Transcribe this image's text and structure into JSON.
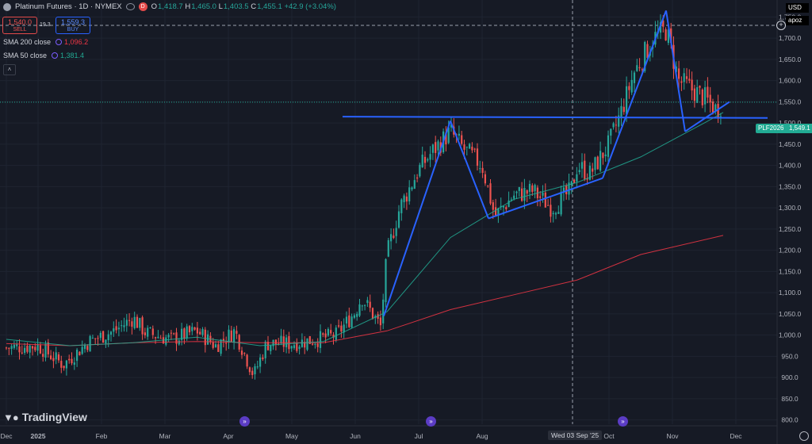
{
  "header": {
    "title": "Platinum Futures · 1D · NYMEX",
    "delayed_badge": "D",
    "ohlc": [
      {
        "k": "O",
        "v": "1,418.7"
      },
      {
        "k": "H",
        "v": "1,465.0"
      },
      {
        "k": "L",
        "v": "1,403.5"
      },
      {
        "k": "C",
        "v": "1,455.1"
      }
    ],
    "change": "+42.9 (+3.04%)"
  },
  "trade": {
    "sell_price": "1,540.0",
    "sell_label": "SELL",
    "spread": "19.3",
    "buy_price": "1,559.3",
    "buy_label": "BUY"
  },
  "indicators": [
    {
      "label": "SMA 200 close",
      "value": "1,096.2",
      "color": "#f23645"
    },
    {
      "label": "SMA 50 close",
      "value": "1,381.4",
      "color": "#22ab94"
    }
  ],
  "collapse_icon": "chevron-up-icon",
  "currency": "USD",
  "scale_mode": "apoz",
  "symbol_tag": "PLF2026",
  "last_price": "1,549.1",
  "crosshair_date": "Wed 03 Sep '25",
  "brand": "TradingView",
  "chart_data": {
    "type": "candlestick",
    "ylim": [
      790,
      1790
    ],
    "y_ticks": [
      "1,750.0",
      "1,700.0",
      "1,650.0",
      "1,600.0",
      "1,550.0",
      "1,500.0",
      "1,450.0",
      "1,400.0",
      "1,350.0",
      "1,300.0",
      "1,250.0",
      "1,200.0",
      "1,150.0",
      "1,100.0",
      "1,050.0",
      "1,000.0",
      "950.0",
      "900.0",
      "850.0",
      "800.0"
    ],
    "y_tick_values": [
      1750,
      1700,
      1650,
      1600,
      1550,
      1500,
      1450,
      1400,
      1350,
      1300,
      1250,
      1200,
      1150,
      1100,
      1050,
      1000,
      950,
      900,
      850,
      800
    ],
    "x_ticks": [
      {
        "label": "Dec",
        "t": 0
      },
      {
        "label": "2025",
        "t": 0.5
      },
      {
        "label": "Feb",
        "t": 1.5
      },
      {
        "label": "Mar",
        "t": 2.5
      },
      {
        "label": "Apr",
        "t": 3.5
      },
      {
        "label": "May",
        "t": 4.5
      },
      {
        "label": "Jun",
        "t": 5.5
      },
      {
        "label": "Jul",
        "t": 6.5
      },
      {
        "label": "Aug",
        "t": 7.5
      },
      {
        "label": "Oct",
        "t": 9.5
      },
      {
        "label": "Nov",
        "t": 10.5
      },
      {
        "label": "Dec",
        "t": 11.5
      }
    ],
    "x_range_months": [
      -0.1,
      12.2
    ],
    "close_path": [
      [
        0.0,
        970
      ],
      [
        0.5,
        975
      ],
      [
        0.9,
        930
      ],
      [
        1.3,
        985
      ],
      [
        1.7,
        1010
      ],
      [
        2.0,
        1040
      ],
      [
        2.2,
        1005
      ],
      [
        2.6,
        990
      ],
      [
        3.0,
        1010
      ],
      [
        3.3,
        975
      ],
      [
        3.6,
        1010
      ],
      [
        3.9,
        905
      ],
      [
        4.1,
        980
      ],
      [
        4.5,
        980
      ],
      [
        4.9,
        990
      ],
      [
        5.2,
        1000
      ],
      [
        5.5,
        1055
      ],
      [
        5.6,
        1090
      ],
      [
        5.9,
        1020
      ],
      [
        6.0,
        1190
      ],
      [
        6.2,
        1300
      ],
      [
        6.5,
        1390
      ],
      [
        6.7,
        1430
      ],
      [
        7.0,
        1480
      ],
      [
        7.2,
        1440
      ],
      [
        7.5,
        1400
      ],
      [
        7.7,
        1280
      ],
      [
        8.0,
        1330
      ],
      [
        8.3,
        1340
      ],
      [
        8.6,
        1300
      ],
      [
        8.9,
        1340
      ],
      [
        9.0,
        1400
      ],
      [
        9.2,
        1380
      ],
      [
        9.5,
        1450
      ],
      [
        9.7,
        1530
      ],
      [
        9.9,
        1620
      ],
      [
        10.2,
        1700
      ],
      [
        10.4,
        1720
      ],
      [
        10.6,
        1600
      ],
      [
        10.8,
        1580
      ],
      [
        11.0,
        1560
      ],
      [
        11.2,
        1530
      ],
      [
        11.3,
        1549
      ]
    ],
    "series": [
      {
        "name": "SMA 200 close",
        "color": "#f23645",
        "points": [
          [
            0,
            980
          ],
          [
            1,
            975
          ],
          [
            2,
            982
          ],
          [
            3,
            985
          ],
          [
            4,
            982
          ],
          [
            5,
            982
          ],
          [
            6,
            1010
          ],
          [
            7,
            1060
          ],
          [
            8,
            1095
          ],
          [
            9,
            1130
          ],
          [
            10,
            1190
          ],
          [
            11.3,
            1235
          ]
        ]
      },
      {
        "name": "SMA 50 close",
        "color": "#22ab94",
        "points": [
          [
            0,
            990
          ],
          [
            1,
            975
          ],
          [
            2,
            982
          ],
          [
            3,
            995
          ],
          [
            4,
            975
          ],
          [
            5,
            985
          ],
          [
            6,
            1055
          ],
          [
            7,
            1230
          ],
          [
            8,
            1320
          ],
          [
            9,
            1360
          ],
          [
            10,
            1420
          ],
          [
            11,
            1500
          ],
          [
            11.3,
            1525
          ]
        ]
      }
    ],
    "trend_lines": [
      [
        [
          5.95,
          1045
        ],
        [
          7.0,
          1505
        ]
      ],
      [
        [
          7.0,
          1505
        ],
        [
          7.6,
          1275
        ]
      ],
      [
        [
          7.6,
          1275
        ],
        [
          9.4,
          1370
        ]
      ],
      [
        [
          9.4,
          1370
        ],
        [
          10.4,
          1765
        ]
      ],
      [
        [
          10.4,
          1765
        ],
        [
          10.7,
          1480
        ]
      ],
      [
        [
          10.7,
          1480
        ],
        [
          11.4,
          1550
        ]
      ],
      [
        [
          5.3,
          1515
        ],
        [
          12.0,
          1512
        ]
      ]
    ]
  }
}
